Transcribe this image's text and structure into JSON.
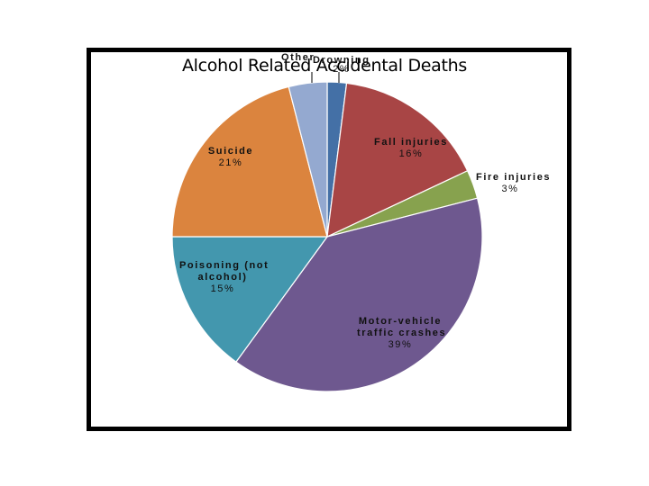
{
  "chart_data": {
    "type": "pie",
    "title": "Alcohol Related Accidental Deaths",
    "categories": [
      "Drowning",
      "Fall injuries",
      "Fire injuries",
      "Motor-vehicle traffic crashes",
      "Poisoning (not alcohol)",
      "Suicide",
      "Other"
    ],
    "values": [
      2,
      16,
      3,
      39,
      15,
      21,
      4
    ],
    "labels": [
      "2%",
      "16%",
      "3%",
      "39%",
      "15%",
      "21%",
      ""
    ],
    "colors": [
      "#4470A6",
      "#A84545",
      "#87A24E",
      "#6E588F",
      "#4397AE",
      "#DB843E",
      "#94A9D0"
    ],
    "start_angle": "12 o'clock, clockwise",
    "legend": "none (data labels on slices)"
  },
  "title": "Alcohol Related Accidental Deaths",
  "labels": {
    "other": {
      "name": "Other",
      "pct": ""
    },
    "drowning": {
      "name": "Drowning",
      "pct": "2%"
    },
    "fall": {
      "name": "Fall injuries",
      "pct": "16%"
    },
    "fire": {
      "name": "Fire injuries",
      "pct": "3%"
    },
    "motor": {
      "name1": "Motor-vehicle",
      "name2": "traffic crashes",
      "pct": "39%"
    },
    "poisoning": {
      "name1": "Poisoning (not",
      "name2": "alcohol)",
      "pct": "15%"
    },
    "suicide": {
      "name": "Suicide",
      "pct": "21%"
    }
  }
}
